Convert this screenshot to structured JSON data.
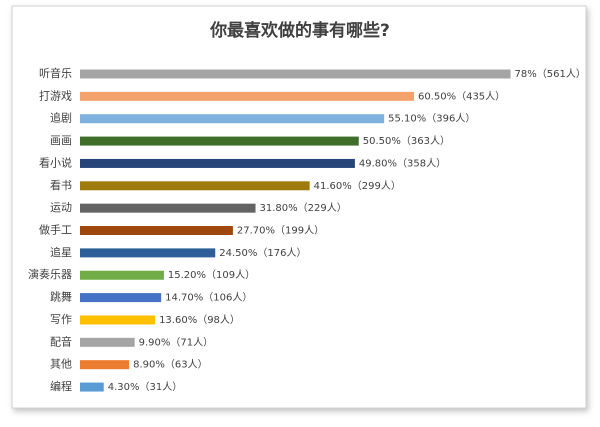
{
  "chart_data": {
    "type": "bar",
    "orientation": "horizontal",
    "title": "你最喜欢做的事有哪些?",
    "categories": [
      "听音乐",
      "打游戏",
      "追剧",
      "画画",
      "看小说",
      "看书",
      "运动",
      "做手工",
      "追星",
      "演奏乐器",
      "跳舞",
      "写作",
      "配音",
      "其他",
      "编程"
    ],
    "values": [
      78,
      60.5,
      55.1,
      50.5,
      49.8,
      41.6,
      31.8,
      27.7,
      24.5,
      15.2,
      14.7,
      13.6,
      9.9,
      8.9,
      4.3
    ],
    "value_labels": [
      "78%（561人）",
      "60.50%（435人）",
      "55.10%（396人）",
      "50.50%（363人）",
      "49.80%（358人）",
      "41.60%（299人）",
      "31.80%（229人）",
      "27.70%（199人）",
      "24.50%（176人）",
      "15.20%（109人）",
      "14.70%（106人）",
      "13.60%（98人）",
      "9.90%（71人）",
      "8.90%（63人）",
      "4.30%（31人）"
    ],
    "colors": [
      "#a5a5a5",
      "#f4a26b",
      "#7fb1df",
      "#3f6e2b",
      "#264478",
      "#9e7b0c",
      "#636363",
      "#9e480e",
      "#2f5f98",
      "#70ad47",
      "#4472c4",
      "#ffc000",
      "#a5a5a5",
      "#ed7d31",
      "#5b9bd5"
    ]
  }
}
